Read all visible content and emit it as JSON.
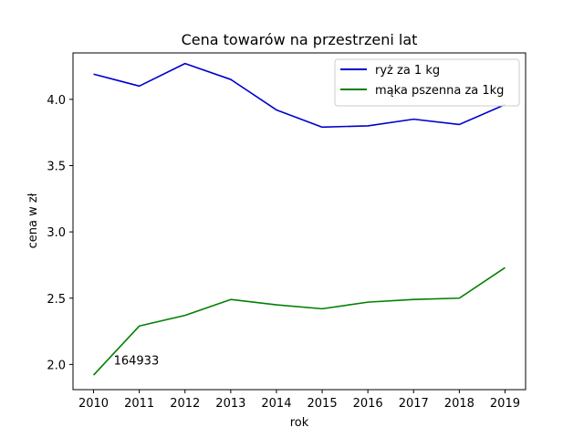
{
  "chart_data": {
    "type": "line",
    "title": "Cena towarów na przestrzeni lat",
    "xlabel": "rok",
    "ylabel": "cena w zł",
    "x": [
      2010,
      2011,
      2012,
      2013,
      2014,
      2015,
      2016,
      2017,
      2018,
      2019
    ],
    "xlim": [
      2009.55,
      2019.45
    ],
    "ylim": [
      1.81,
      4.35
    ],
    "yticks": [
      2.0,
      2.5,
      3.0,
      3.5,
      4.0
    ],
    "ytick_labels": [
      "2.0",
      "2.5",
      "3.0",
      "3.5",
      "4.0"
    ],
    "xtick_labels": [
      "2010",
      "2011",
      "2012",
      "2013",
      "2014",
      "2015",
      "2016",
      "2017",
      "2018",
      "2019"
    ],
    "grid": false,
    "legend_position": "top-right",
    "series": [
      {
        "name": "ryż za 1 kg",
        "color": "#0000cc",
        "values": [
          4.19,
          4.1,
          4.27,
          4.15,
          3.92,
          3.79,
          3.8,
          3.85,
          3.81,
          3.96
        ]
      },
      {
        "name": "mąka pszenna za 1kg",
        "color": "#008000",
        "values": [
          1.92,
          2.29,
          2.37,
          2.49,
          2.45,
          2.42,
          2.47,
          2.49,
          2.5,
          2.73
        ]
      }
    ],
    "annotations": [
      {
        "text": "164933",
        "x": 2010.5,
        "y": 2.0
      }
    ]
  }
}
